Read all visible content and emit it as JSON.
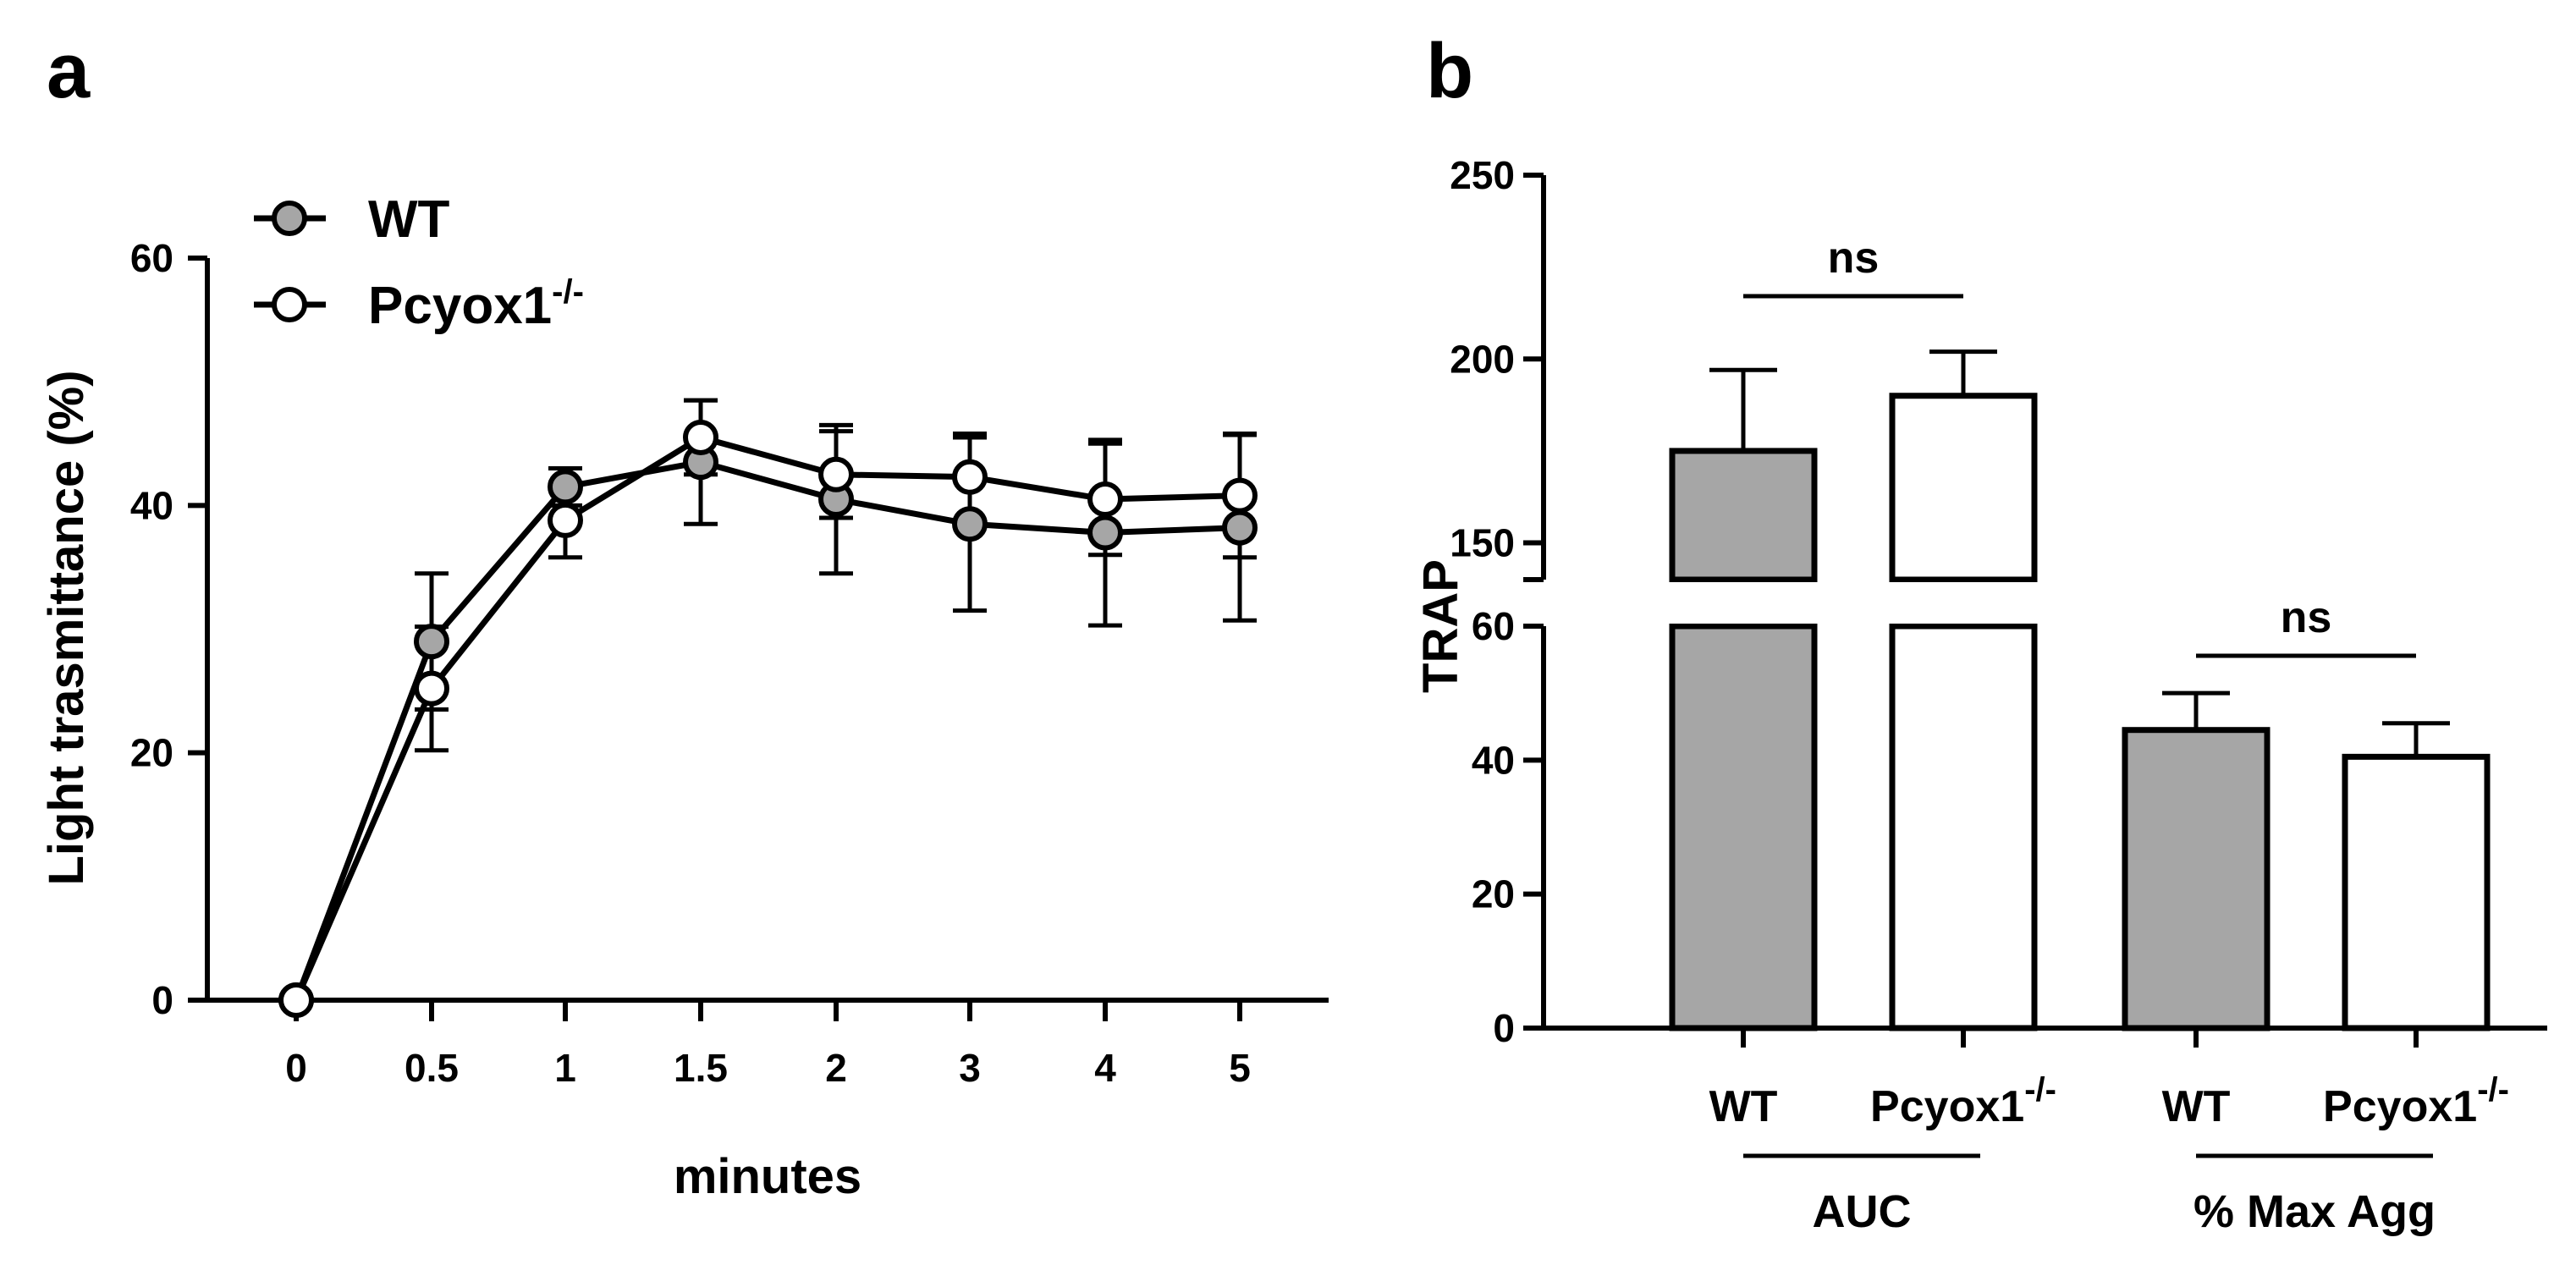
{
  "chart_data": [
    {
      "panel": "a",
      "type": "line",
      "xlabel": "minutes",
      "ylabel": "Light trasmittance (%)",
      "x": [
        "0",
        "0.5",
        "1",
        "1.5",
        "2",
        "3",
        "4",
        "5"
      ],
      "ylim": [
        0,
        60
      ],
      "yticks": [
        "0",
        "20",
        "40",
        "60"
      ],
      "legend_position": "top-left",
      "series": [
        {
          "name": "WT",
          "name_sup": "",
          "marker": "filled-gray",
          "values": [
            0,
            29,
            41.5,
            43.5,
            40.5,
            38.5,
            37.8,
            38.2
          ],
          "errors": [
            0,
            5.5,
            1.5,
            5,
            6,
            7,
            7.5,
            7.5
          ]
        },
        {
          "name": "Pcyox1",
          "name_sup": "-/-",
          "marker": "open-white",
          "values": [
            0,
            25.2,
            38.8,
            45.5,
            42.5,
            42.3,
            40.5,
            40.8
          ],
          "errors": [
            0,
            5,
            3,
            3,
            3.5,
            3.5,
            4.5,
            5
          ]
        }
      ]
    },
    {
      "panel": "b",
      "type": "bar",
      "ylabel": "TRAP",
      "axis_break": true,
      "upper_ylim": [
        140,
        250
      ],
      "upper_yticks": [
        "150",
        "200",
        "250"
      ],
      "lower_ylim": [
        0,
        60
      ],
      "lower_yticks": [
        "0",
        "20",
        "40",
        "60"
      ],
      "groups": [
        {
          "name": "AUC",
          "bars": [
            {
              "label": "WT",
              "label_sup": "",
              "fill": "gray",
              "value": 175,
              "error": 22
            },
            {
              "label": "Pcyox1",
              "label_sup": "-/-",
              "fill": "white",
              "value": 190,
              "error": 12
            }
          ],
          "significance": "ns"
        },
        {
          "name": "% Max Agg",
          "bars": [
            {
              "label": "WT",
              "label_sup": "",
              "fill": "gray",
              "value": 44.5,
              "error": 5.5
            },
            {
              "label": "Pcyox1",
              "label_sup": "-/-",
              "fill": "white",
              "value": 40.5,
              "error": 5
            }
          ],
          "significance": "ns"
        }
      ]
    }
  ],
  "panels": {
    "a_letter": "a",
    "b_letter": "b"
  },
  "colors": {
    "gray_fill": "#a6a6a6",
    "white_fill": "#ffffff",
    "line": "#000000"
  }
}
